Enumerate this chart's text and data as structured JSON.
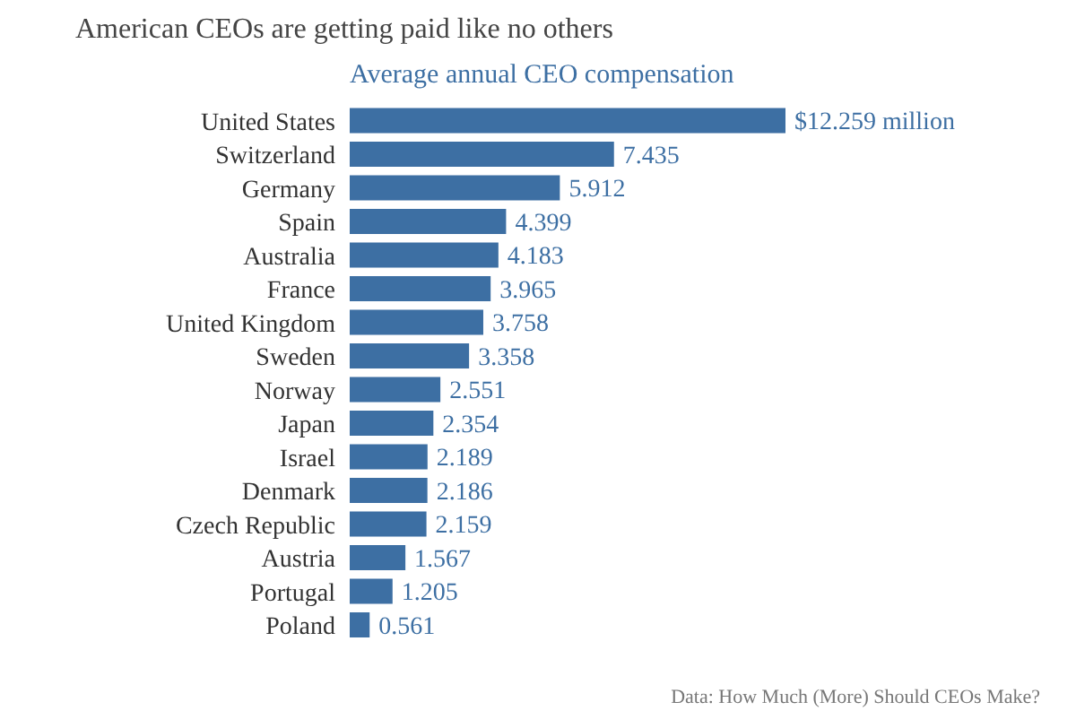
{
  "chart_data": {
    "type": "bar",
    "orientation": "horizontal",
    "title": "American CEOs are getting paid like no others",
    "subtitle": "Average annual CEO compensation",
    "categories": [
      "United States",
      "Switzerland",
      "Germany",
      "Spain",
      "Australia",
      "France",
      "United Kingdom",
      "Sweden",
      "Norway",
      "Japan",
      "Israel",
      "Denmark",
      "Czech Republic",
      "Austria",
      "Portugal",
      "Poland"
    ],
    "values": [
      12.259,
      7.435,
      5.912,
      4.399,
      4.183,
      3.965,
      3.758,
      3.358,
      2.551,
      2.354,
      2.189,
      2.186,
      2.159,
      1.567,
      1.205,
      0.561
    ],
    "value_labels": [
      "$12.259 million",
      "7.435",
      "5.912",
      "4.399",
      "4.183",
      "3.965",
      "3.758",
      "3.358",
      "2.551",
      "2.354",
      "2.189",
      "2.186",
      "2.159",
      "1.567",
      "1.205",
      "0.561"
    ],
    "color": "#3d6fa3",
    "annotations": [
      "Data: How Much (More) Should CEOs Make?"
    ]
  }
}
